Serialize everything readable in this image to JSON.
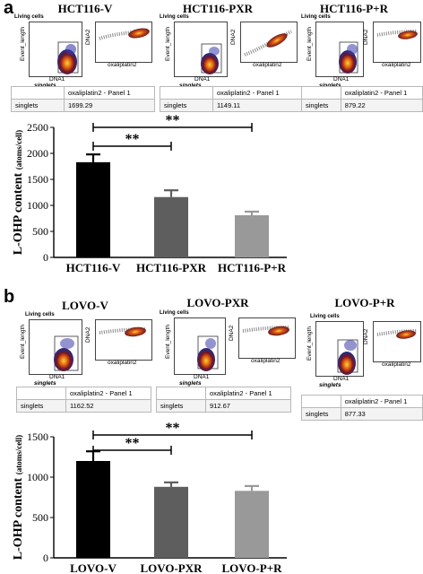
{
  "panels": [
    {
      "letter": "a",
      "groups": [
        {
          "name": "HCT116-V",
          "gate_label": "Living cells",
          "y_axis": "Event_length",
          "x_axis": "DNA1",
          "gate_name": "singlets",
          "scatter_y": "DNA2",
          "scatter_x": "oxaliplatin2",
          "table_header": "oxaliplatin2 - Panel 1",
          "table_row_label": "singlets",
          "table_value": "1699.29"
        },
        {
          "name": "HCT116-PXR",
          "gate_label": "Living cells",
          "y_axis": "Event_length",
          "x_axis": "DNA1",
          "gate_name": "singlets",
          "scatter_y": "DNA2",
          "scatter_x": "oxaliplatin2",
          "table_header": "oxaliplatin2 - Panel 1",
          "table_row_label": "singlets",
          "table_value": "1149.11"
        },
        {
          "name": "HCT116-P+R",
          "gate_label": "Living cells",
          "y_axis": "Event_length",
          "x_axis": "DNA1",
          "gate_name": "singlets",
          "scatter_y": "DNA2",
          "scatter_x": "oxaliplatin2",
          "table_header": "oxaliplatin2 - Panel 1",
          "table_row_label": "singlets",
          "table_value": "879.22"
        }
      ]
    },
    {
      "letter": "b",
      "groups": [
        {
          "name": "LOVO-V",
          "gate_label": "Living cells",
          "y_axis": "Event_length",
          "x_axis": "DNA1",
          "gate_name": "singlets",
          "scatter_y": "DNA2",
          "scatter_x": "oxaliplatin2",
          "table_header": "oxaliplatin2 - Panel 1",
          "table_row_label": "singlets",
          "table_value": "1162.52"
        },
        {
          "name": "LOVO-PXR",
          "gate_label": "Living cells",
          "y_axis": "Event_length",
          "x_axis": "DNA1",
          "gate_name": "singlets",
          "scatter_y": "DNA2",
          "scatter_x": "oxaliplatin2",
          "table_header": "oxaliplatin2 - Panel 1",
          "table_row_label": "singlets",
          "table_value": "912.67"
        },
        {
          "name": "LOVO-P+R",
          "gate_label": "Living cells",
          "y_axis": "Event_length",
          "x_axis": "DNA1",
          "gate_name": "singlets",
          "scatter_y": "DNA2",
          "scatter_x": "oxaliplatin2",
          "table_header": "oxaliplatin2 - Panel 1",
          "table_row_label": "singlets",
          "table_value": "877.33"
        }
      ]
    }
  ],
  "chart_data": [
    {
      "type": "bar",
      "categories": [
        "HCT116-V",
        "HCT116-PXR",
        "HCT116-P+R"
      ],
      "values": [
        1830,
        1160,
        810
      ],
      "errors": [
        150,
        130,
        70
      ],
      "colors": [
        "#000000",
        "#5e5e5e",
        "#999999"
      ],
      "ylabel_main": "L-OHP content ",
      "ylabel_unit": "(atoms/cell)",
      "ylim": [
        0,
        2500
      ],
      "yticks": [
        0,
        500,
        1000,
        1500,
        2000,
        2500
      ],
      "significance": [
        {
          "from": 0,
          "to": 1,
          "label": "**"
        },
        {
          "from": 0,
          "to": 2,
          "label": "**"
        }
      ]
    },
    {
      "type": "bar",
      "categories": [
        "LOVO-V",
        "LOVO-PXR",
        "LOVO-P+R"
      ],
      "values": [
        1200,
        880,
        830
      ],
      "errors": [
        120,
        55,
        60
      ],
      "colors": [
        "#000000",
        "#5e5e5e",
        "#999999"
      ],
      "ylabel_main": "L-OHP content ",
      "ylabel_unit": "(atoms/cell)",
      "ylim": [
        0,
        1500
      ],
      "yticks": [
        0,
        500,
        1000,
        1500
      ],
      "significance": [
        {
          "from": 0,
          "to": 1,
          "label": "**"
        },
        {
          "from": 0,
          "to": 2,
          "label": "**"
        }
      ]
    }
  ]
}
